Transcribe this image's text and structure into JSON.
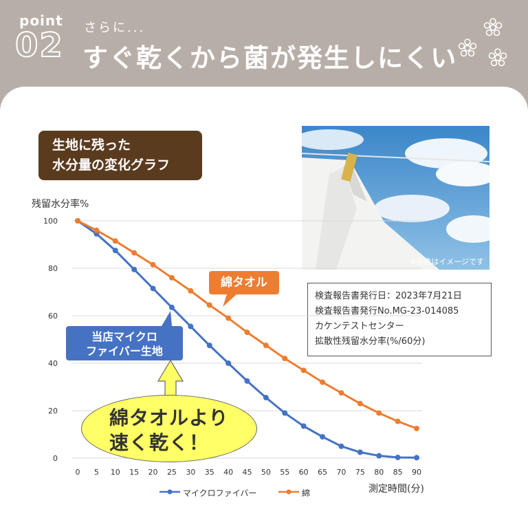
{
  "header": {
    "point_label": "point",
    "point_number": "02",
    "subtitle": "さらに...",
    "title": "すぐ乾くから菌が発生しにくい",
    "flower_icon": "flower-icon"
  },
  "info_box": {
    "line1": "生地に残った",
    "line2": "水分量の変化グラフ"
  },
  "photo": {
    "caption": "※画像はイメージです"
  },
  "report": {
    "line1": "検査報告書発行日：2023年7月21日",
    "line2": "検査報告書発行No.MG-23-014085",
    "line3": "カケンテストセンター",
    "line4": "拡散性残留水分率(%/60分)"
  },
  "callouts": {
    "microfiber_line1": "当店マイクロ",
    "microfiber_line2": "ファイバー生地",
    "cotton": "綿タオル",
    "bubble_line1": "綿タオルより",
    "bubble_line2": "速く乾く！"
  },
  "colors": {
    "microfiber": "#4472c4",
    "cotton": "#ed7d31",
    "header_bg": "#b8aea8",
    "brown": "#5b3b1e",
    "bubble": "#ffff66"
  },
  "chart_data": {
    "type": "line",
    "ylabel": "残留水分率%",
    "xlabel": "測定時間(分)",
    "x": [
      0,
      5,
      10,
      15,
      20,
      25,
      30,
      35,
      40,
      45,
      50,
      55,
      60,
      65,
      70,
      75,
      80,
      85,
      90
    ],
    "ylim": [
      0,
      100
    ],
    "yticks": [
      0,
      20,
      40,
      60,
      80,
      100
    ],
    "grid": true,
    "legend_position": "bottom",
    "series": [
      {
        "name": "マイクロファイバー",
        "color": "#4472c4",
        "values": [
          100,
          94.5,
          87.5,
          79.5,
          71.5,
          63.5,
          55.5,
          47.5,
          40,
          32.5,
          25.5,
          19,
          13.5,
          9,
          5,
          2.5,
          1,
          0.3,
          0.2
        ]
      },
      {
        "name": "綿",
        "color": "#ed7d31",
        "values": [
          100,
          96,
          91.5,
          86.5,
          81.5,
          76,
          70.5,
          64.5,
          59,
          53,
          47.5,
          42,
          37,
          32,
          27.5,
          23,
          19,
          15.5,
          12.5
        ]
      }
    ]
  }
}
